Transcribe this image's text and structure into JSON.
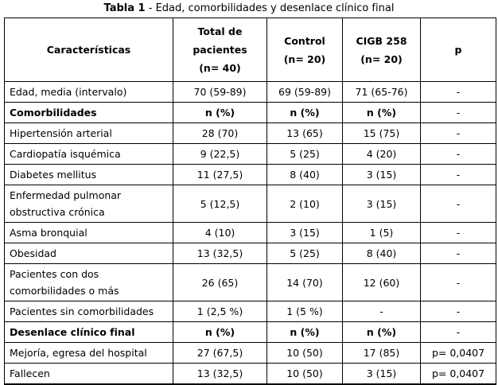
{
  "title": {
    "bold": "Tabla 1",
    "rest": " - Edad, comorbilidades y desenlace clínico final"
  },
  "table": {
    "headers": [
      "Características",
      "Total de\npacientes\n(n= 40)",
      "Control\n(n= 20)",
      "CIGB 258\n(n= 20)",
      "p"
    ],
    "rows": [
      {
        "label": "Edad, media (intervalo)",
        "section": false,
        "cells": [
          "70 (59-89)",
          "69 (59-89)",
          "71 (65-76)",
          "-"
        ]
      },
      {
        "label": "Comorbilidades",
        "section": true,
        "cells": [
          "n (%)",
          "n (%)",
          "n (%)",
          "-"
        ]
      },
      {
        "label": "Hipertensión arterial",
        "section": false,
        "cells": [
          "28 (70)",
          "13 (65)",
          "15 (75)",
          "-"
        ]
      },
      {
        "label": "Cardiopatía isquémica",
        "section": false,
        "cells": [
          "9 (22,5)",
          "5 (25)",
          "4 (20)",
          "-"
        ]
      },
      {
        "label": "Diabetes mellitus",
        "section": false,
        "cells": [
          "11 (27,5)",
          "8 (40)",
          "3 (15)",
          "-"
        ]
      },
      {
        "label": "Enfermedad pulmonar\nobstructiva crónica",
        "section": false,
        "cells": [
          "5 (12,5)",
          "2 (10)",
          "3 (15)",
          "-"
        ]
      },
      {
        "label": "Asma bronquial",
        "section": false,
        "cells": [
          "4 (10)",
          "3 (15)",
          "1 (5)",
          "-"
        ]
      },
      {
        "label": "Obesidad",
        "section": false,
        "cells": [
          "13 (32,5)",
          "5 (25)",
          "8 (40)",
          "-"
        ]
      },
      {
        "label": "Pacientes con dos\ncomorbilidades o más",
        "section": false,
        "cells": [
          "26 (65)",
          "14 (70)",
          "12 (60)",
          "-"
        ]
      },
      {
        "label": "Pacientes sin comorbilidades",
        "section": false,
        "cells": [
          "1 (2,5 %)",
          "1 (5 %)",
          "-",
          "-"
        ]
      },
      {
        "label": "Desenlace clínico final",
        "section": true,
        "cells": [
          "n (%)",
          "n (%)",
          "n (%)",
          "-"
        ]
      },
      {
        "label": "Mejoría, egresa del hospital",
        "section": false,
        "cells": [
          "27 (67,5)",
          "10 (50)",
          "17 (85)",
          "p= 0,0407"
        ]
      },
      {
        "label": "Fallecen",
        "section": false,
        "cells": [
          "13 (32,5)",
          "10 (50)",
          "3 (15)",
          "p= 0,0407"
        ]
      }
    ]
  }
}
